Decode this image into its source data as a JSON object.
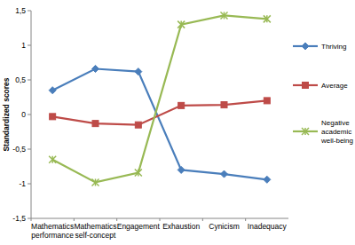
{
  "chart_data": {
    "type": "line",
    "y_label": "Standardized scores",
    "categories": [
      "Mathematics performance",
      "Mathematics self-concept",
      "Engagement",
      "Exhaustion",
      "Cynicism",
      "Inadequacy"
    ],
    "series": [
      {
        "name": "Thriving",
        "color": "#4a7ebb",
        "marker": "diamond",
        "values": [
          0.35,
          0.66,
          0.62,
          -0.8,
          -0.86,
          -0.94
        ]
      },
      {
        "name": "Average",
        "color": "#be4b48",
        "marker": "square",
        "values": [
          -0.03,
          -0.13,
          -0.15,
          0.13,
          0.14,
          0.2
        ]
      },
      {
        "name": "Negative academic well-being",
        "color": "#98b954",
        "marker": "x",
        "values": [
          -0.65,
          -0.98,
          -0.84,
          1.3,
          1.43,
          1.38
        ]
      }
    ],
    "ylim": [
      -1.5,
      1.5
    ],
    "yticks": [
      {
        "value": -1.5,
        "label": "-1,5"
      },
      -1,
      {
        "value": -0.5,
        "label": "-0,5"
      },
      0,
      {
        "value": 0.5,
        "label": "0,5"
      },
      1,
      {
        "value": 1.5,
        "label": "1,5"
      }
    ],
    "grid": false,
    "legend": "right"
  }
}
